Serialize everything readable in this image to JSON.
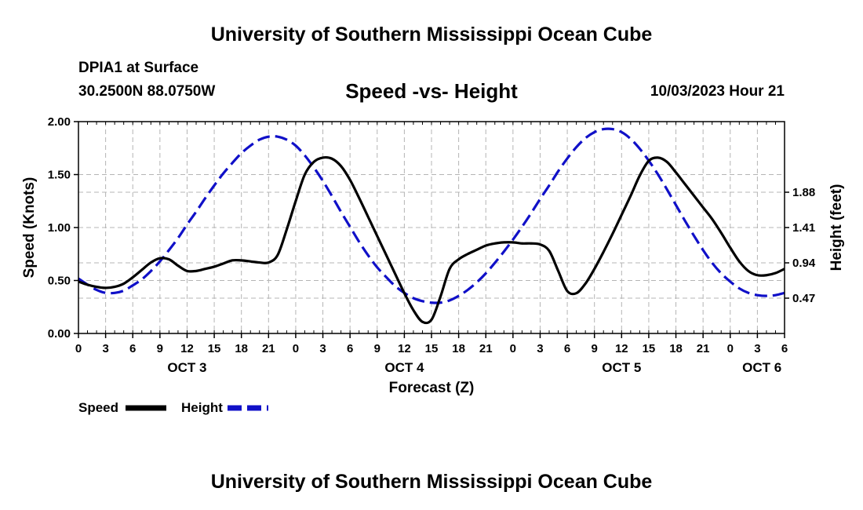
{
  "header": {
    "title": "University of Southern Mississippi Ocean Cube",
    "station": "DPIA1 at Surface",
    "location": "30.2500N  88.0750W",
    "chart_title": "Speed -vs- Height",
    "issued": "10/03/2023 Hour 21"
  },
  "footer": {
    "title": "University of Southern Mississippi Ocean Cube"
  },
  "legend": {
    "speed_label": "Speed",
    "height_label": "Height"
  },
  "colors": {
    "speed": "#000000",
    "height": "#1010c8",
    "grid": "#b4b4b4"
  },
  "chart_data": {
    "type": "line",
    "title": "Speed -vs- Height",
    "xlabel": "Forecast (Z)",
    "ylabel": "Speed (Knots)",
    "y2label": "Height (feet)",
    "xlim": [
      0,
      78
    ],
    "ylim": [
      0,
      2
    ],
    "y2lim": [
      0,
      2.82
    ],
    "yticks": [
      0,
      0.5,
      1,
      1.5,
      2
    ],
    "ytick_labels": [
      "0.00",
      "0.50",
      "1.00",
      "1.50",
      "2.00"
    ],
    "y2ticks": [
      0.47,
      0.94,
      1.41,
      1.88
    ],
    "y2tick_labels": [
      "0.47",
      "0.94",
      "1.41",
      "1.88"
    ],
    "xticks": [
      0,
      3,
      6,
      9,
      12,
      15,
      18,
      21,
      24,
      27,
      30,
      33,
      36,
      39,
      42,
      45,
      48,
      51,
      54,
      57,
      60,
      63,
      66,
      69,
      72,
      75,
      78
    ],
    "xtick_labels": [
      "0",
      "3",
      "6",
      "9",
      "12",
      "15",
      "18",
      "21",
      "0",
      "3",
      "6",
      "9",
      "12",
      "15",
      "18",
      "21",
      "0",
      "3",
      "6",
      "9",
      "12",
      "15",
      "18",
      "21",
      "0",
      "3",
      "6"
    ],
    "day_labels": [
      {
        "x": 12,
        "label": "OCT 3"
      },
      {
        "x": 36,
        "label": "OCT 4"
      },
      {
        "x": 60,
        "label": "OCT 5"
      },
      {
        "x": 75.5,
        "label": "OCT 6"
      }
    ],
    "series": [
      {
        "name": "Speed",
        "axis": "left",
        "style": "solid",
        "x": [
          0,
          1,
          2,
          3,
          4,
          5,
          6,
          7,
          8,
          9,
          10,
          11,
          12,
          13,
          14,
          15,
          16,
          17,
          18,
          19,
          20,
          21,
          22,
          23,
          24,
          25,
          26,
          27,
          28,
          29,
          30,
          31,
          32,
          33,
          34,
          35,
          36,
          37,
          38,
          39,
          40,
          41,
          42,
          43,
          44,
          45,
          46,
          47,
          48,
          49,
          50,
          51,
          52,
          53,
          54,
          55,
          56,
          57,
          58,
          59,
          60,
          61,
          62,
          63,
          64,
          65,
          66,
          67,
          68,
          69,
          70,
          71,
          72,
          73,
          74,
          75,
          76,
          77,
          78
        ],
        "values": [
          0.49,
          0.46,
          0.44,
          0.43,
          0.44,
          0.47,
          0.53,
          0.6,
          0.67,
          0.71,
          0.7,
          0.64,
          0.59,
          0.59,
          0.61,
          0.63,
          0.66,
          0.69,
          0.69,
          0.68,
          0.67,
          0.67,
          0.74,
          0.98,
          1.25,
          1.5,
          1.62,
          1.66,
          1.65,
          1.58,
          1.45,
          1.28,
          1.1,
          0.92,
          0.74,
          0.56,
          0.38,
          0.22,
          0.11,
          0.13,
          0.35,
          0.61,
          0.7,
          0.75,
          0.79,
          0.83,
          0.85,
          0.86,
          0.86,
          0.85,
          0.85,
          0.84,
          0.78,
          0.59,
          0.4,
          0.38,
          0.47,
          0.61,
          0.77,
          0.94,
          1.12,
          1.3,
          1.49,
          1.63,
          1.66,
          1.62,
          1.52,
          1.41,
          1.3,
          1.19,
          1.08,
          0.95,
          0.81,
          0.68,
          0.59,
          0.55,
          0.55,
          0.57,
          0.61
        ]
      },
      {
        "name": "Height",
        "axis": "right",
        "style": "dashed",
        "x": [
          0,
          1,
          2,
          3,
          4,
          5,
          6,
          7,
          8,
          9,
          10,
          11,
          12,
          13,
          14,
          15,
          16,
          17,
          18,
          19,
          20,
          21,
          22,
          23,
          24,
          25,
          26,
          27,
          28,
          29,
          30,
          31,
          32,
          33,
          34,
          35,
          36,
          37,
          38,
          39,
          40,
          41,
          42,
          43,
          44,
          45,
          46,
          47,
          48,
          49,
          50,
          51,
          52,
          53,
          54,
          55,
          56,
          57,
          58,
          59,
          60,
          61,
          62,
          63,
          64,
          65,
          66,
          67,
          68,
          69,
          70,
          71,
          72,
          73,
          74,
          75,
          76,
          77,
          78
        ],
        "values": [
          0.73,
          0.65,
          0.58,
          0.54,
          0.54,
          0.57,
          0.64,
          0.72,
          0.83,
          0.96,
          1.11,
          1.27,
          1.45,
          1.62,
          1.8,
          1.97,
          2.13,
          2.27,
          2.4,
          2.5,
          2.58,
          2.62,
          2.62,
          2.58,
          2.5,
          2.37,
          2.21,
          2.03,
          1.83,
          1.62,
          1.42,
          1.22,
          1.04,
          0.88,
          0.75,
          0.63,
          0.54,
          0.47,
          0.43,
          0.41,
          0.41,
          0.44,
          0.5,
          0.58,
          0.68,
          0.8,
          0.94,
          1.09,
          1.25,
          1.42,
          1.6,
          1.79,
          1.97,
          2.16,
          2.33,
          2.48,
          2.6,
          2.68,
          2.72,
          2.72,
          2.68,
          2.59,
          2.46,
          2.3,
          2.12,
          1.92,
          1.71,
          1.5,
          1.3,
          1.11,
          0.94,
          0.8,
          0.69,
          0.6,
          0.54,
          0.51,
          0.5,
          0.51,
          0.54
        ]
      }
    ]
  }
}
